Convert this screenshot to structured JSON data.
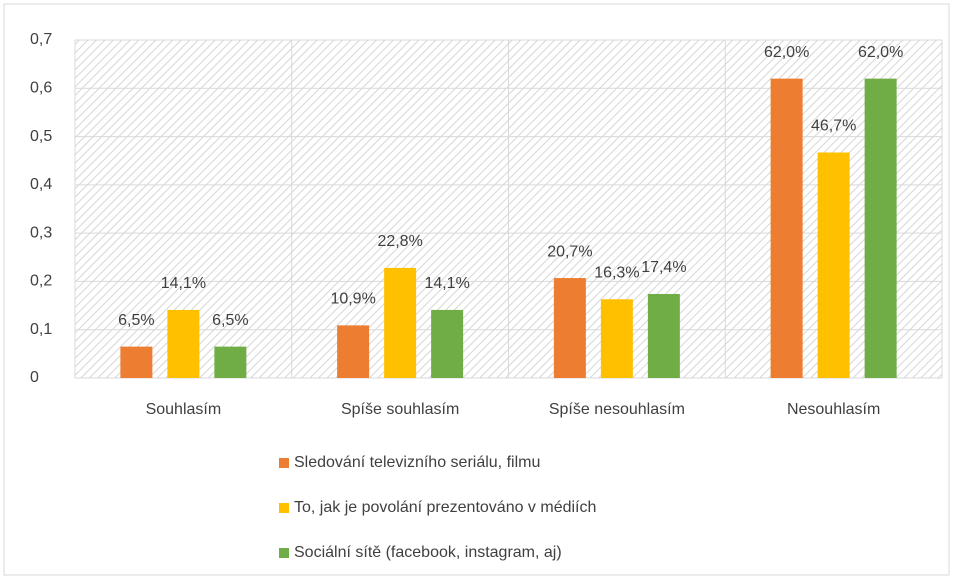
{
  "chart_data": {
    "type": "bar",
    "categories": [
      "Souhlasím",
      "Spíše souhlasím",
      "Spíše nesouhlasím",
      "Nesouhlasím"
    ],
    "series": [
      {
        "name": "Sledování televizního seriálu, filmu",
        "color": "#ED7D31",
        "values": [
          0.065,
          0.109,
          0.207,
          0.62
        ],
        "value_labels": [
          "6,5%",
          "10,9%",
          "20,7%",
          "62,0%"
        ]
      },
      {
        "name": "To, jak je povolání prezentováno v médiích",
        "color": "#FFC000",
        "values": [
          0.141,
          0.228,
          0.163,
          0.467
        ],
        "value_labels": [
          "14,1%",
          "22,8%",
          "16,3%",
          "46,7%"
        ]
      },
      {
        "name": "Sociální sítě (facebook, instagram, aj)",
        "color": "#70AD47",
        "values": [
          0.065,
          0.141,
          0.174,
          0.62
        ],
        "value_labels": [
          "6,5%",
          "14,1%",
          "17,4%",
          "62,0%"
        ]
      }
    ],
    "ylim": [
      0,
      0.7
    ],
    "yticks": [
      0,
      {
        "value": 0.1,
        "label": "0,1"
      },
      {
        "value": 0.2,
        "label": "0,2"
      },
      {
        "value": 0.3,
        "label": "0,3"
      },
      {
        "value": 0.4,
        "label": "0,4"
      },
      {
        "value": 0.5,
        "label": "0,5"
      },
      {
        "value": 0.6,
        "label": "0,6"
      },
      {
        "value": 0.7,
        "label": "0,7"
      }
    ],
    "grid": true,
    "legend": "bottom"
  }
}
